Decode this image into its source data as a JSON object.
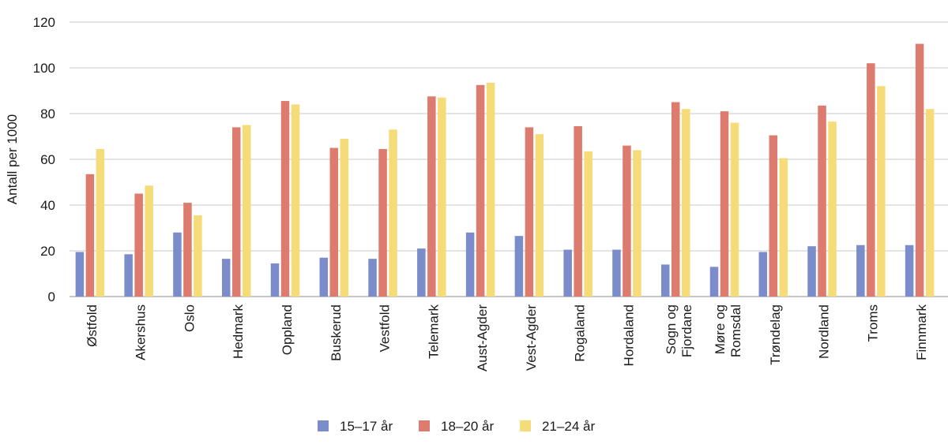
{
  "chart_data": {
    "type": "bar",
    "title": "",
    "xlabel": "",
    "ylabel": "Antall per 1000",
    "ylim": [
      0,
      120
    ],
    "yticks": [
      0,
      20,
      40,
      60,
      80,
      100,
      120
    ],
    "grid": true,
    "legend_position": "bottom",
    "categories": [
      [
        "Østfold"
      ],
      [
        "Akershus"
      ],
      [
        "Oslo"
      ],
      [
        "Hedmark"
      ],
      [
        "Oppland"
      ],
      [
        "Buskerud"
      ],
      [
        "Vestfold"
      ],
      [
        "Telemark"
      ],
      [
        "Aust-Agder"
      ],
      [
        "Vest-Agder"
      ],
      [
        "Rogaland"
      ],
      [
        "Hordaland"
      ],
      [
        "Sogn og",
        "Fjordane"
      ],
      [
        "Møre og",
        "Romsdal"
      ],
      [
        "Trøndelag"
      ],
      [
        "Nordland"
      ],
      [
        "Troms"
      ],
      [
        "Finnmark"
      ]
    ],
    "series": [
      {
        "name": "15–17 år",
        "color": "#7b8cca",
        "values": [
          19.5,
          18.5,
          28,
          16.5,
          14.5,
          17,
          16.5,
          21,
          28,
          26.5,
          20.5,
          20.5,
          14,
          13,
          19.5,
          22,
          22.5,
          22.5
        ]
      },
      {
        "name": "18–20 år",
        "color": "#dc7b6e",
        "values": [
          53.5,
          45,
          41,
          74,
          85.5,
          65,
          64.5,
          87.5,
          92.5,
          74,
          74.5,
          66,
          85,
          81,
          70.5,
          83.5,
          102,
          110.5
        ]
      },
      {
        "name": "21–24 år",
        "color": "#f5dc79",
        "values": [
          64.5,
          48.5,
          35.5,
          75,
          84,
          69,
          73,
          87,
          93.5,
          71,
          63.5,
          64,
          82,
          76,
          60.5,
          76.5,
          92,
          82
        ]
      }
    ]
  }
}
